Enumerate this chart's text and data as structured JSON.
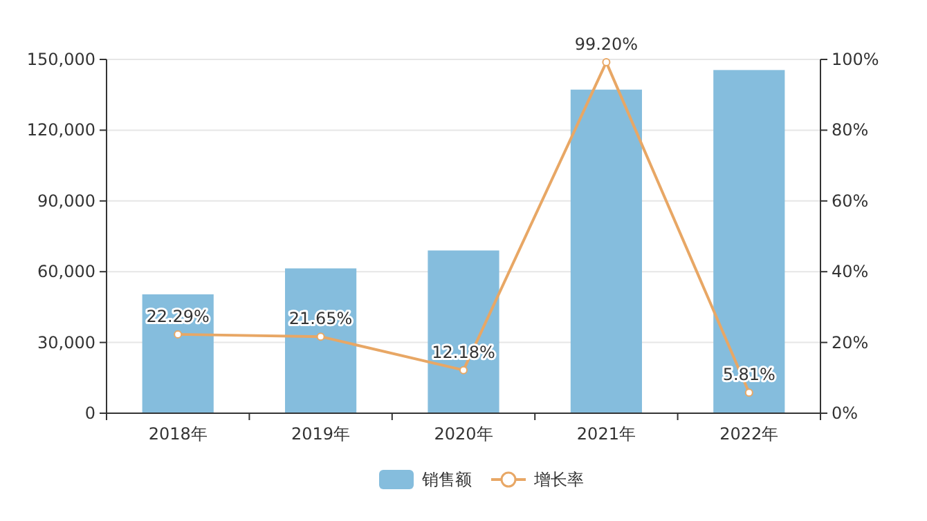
{
  "chart_data": {
    "type": "bar",
    "categories": [
      "2018年",
      "2019年",
      "2020年",
      "2021年",
      "2022年"
    ],
    "series": [
      {
        "name": "销售额",
        "color": "#85bddd",
        "values": [
          50400,
          61400,
          69000,
          137200,
          145500
        ]
      },
      {
        "name": "增长率",
        "type": "line",
        "axis": "y2",
        "color": "#e8a765",
        "marker": "circle",
        "values": [
          22.29,
          21.65,
          12.18,
          99.2,
          5.81
        ],
        "value_labels": [
          "22.29%",
          "21.65%",
          "12.18%",
          "99.20%",
          "5.81%"
        ]
      }
    ],
    "ylim": [
      0,
      150000
    ],
    "yticks": [
      0,
      {
        "value": 30000,
        "label": "30,000"
      },
      {
        "value": 60000,
        "label": "60,000"
      },
      {
        "value": 90000,
        "label": "90,000"
      },
      {
        "value": 120000,
        "label": "120,000"
      },
      {
        "value": 150000,
        "label": "150,000"
      }
    ],
    "y2lim": [
      0,
      100
    ],
    "y2ticks": [
      {
        "value": 0,
        "label": "0%"
      },
      {
        "value": 20,
        "label": "20%"
      },
      {
        "value": 40,
        "label": "40%"
      },
      {
        "value": 60,
        "label": "60%"
      },
      {
        "value": 80,
        "label": "80%"
      },
      {
        "value": 100,
        "label": "100%"
      }
    ],
    "grid": "y",
    "legend": "bottom"
  }
}
